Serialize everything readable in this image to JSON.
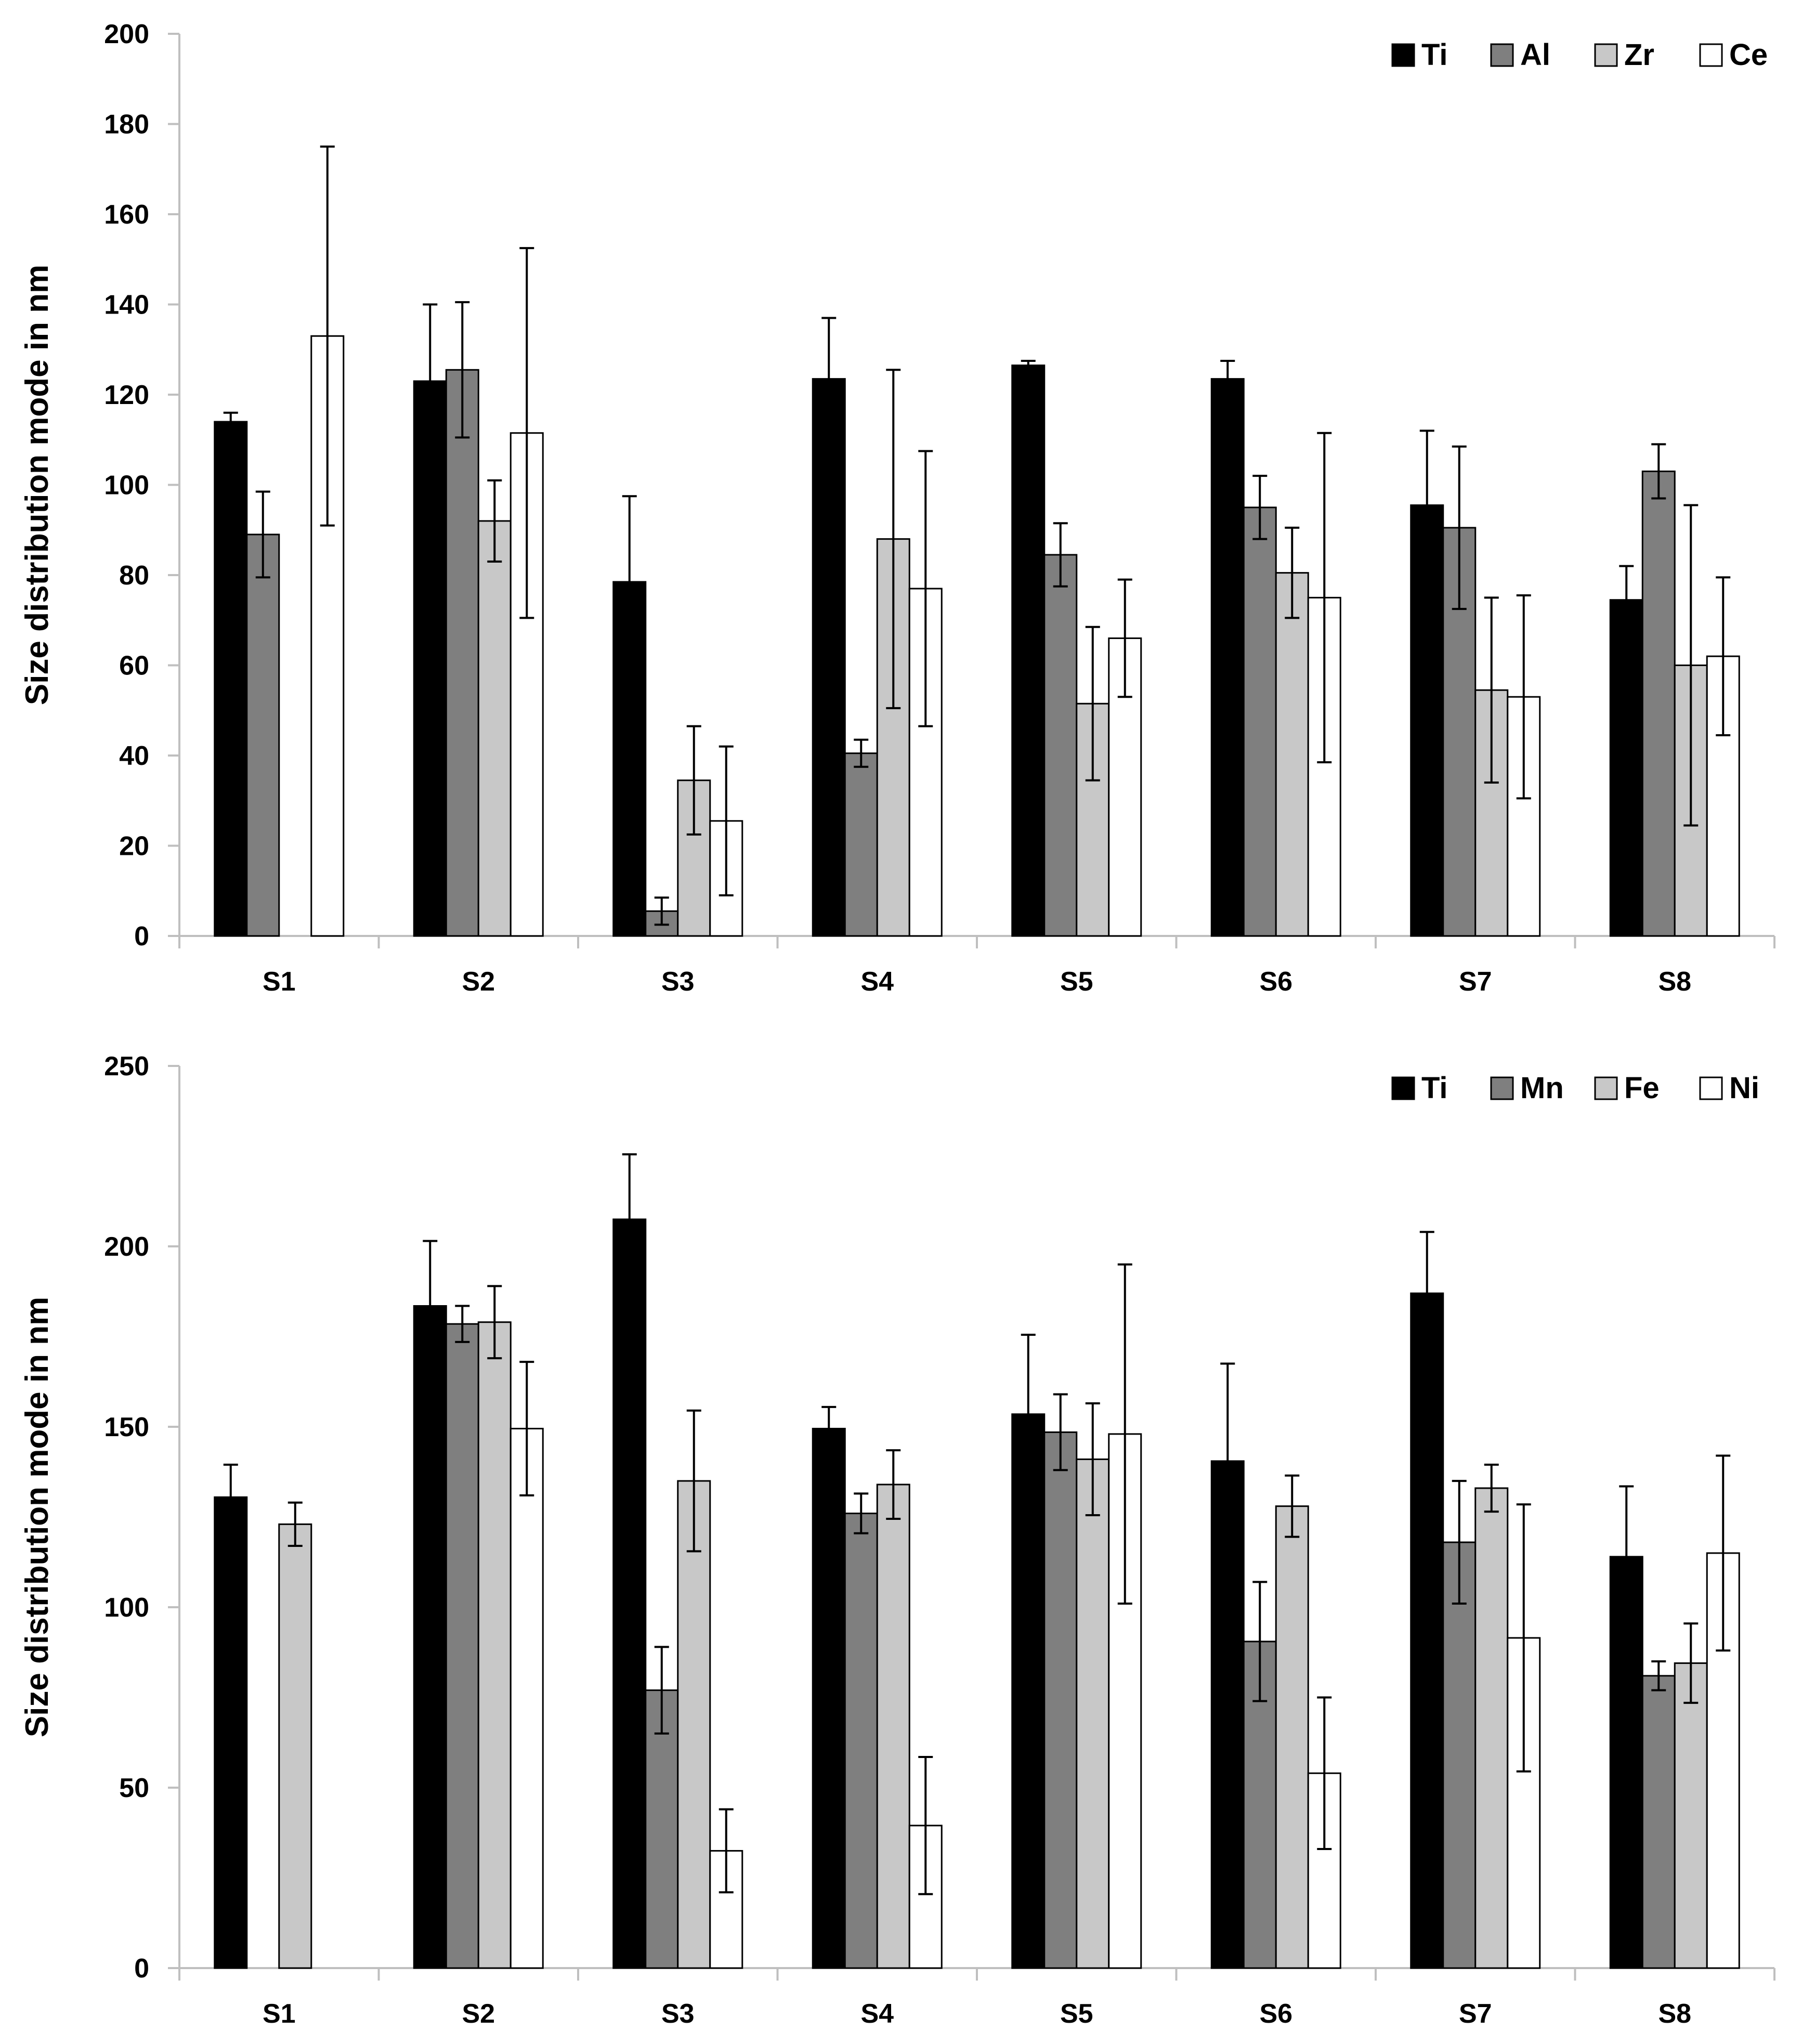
{
  "colors": {
    "series": [
      "#000000",
      "#7f7f7f",
      "#c8c8c8",
      "#ffffff"
    ],
    "outline": "#000000",
    "axis": "#bfbfbf"
  },
  "chart_data": [
    {
      "type": "bar",
      "title": "",
      "xlabel": "",
      "ylabel": "Size distribution mode in nm",
      "ylim": [
        0,
        200
      ],
      "ytick_step": 20,
      "legend_position": "top-right",
      "categories": [
        "S1",
        "S2",
        "S3",
        "S4",
        "S5",
        "S6",
        "S7",
        "S8"
      ],
      "series": [
        {
          "name": "Ti",
          "values": [
            114,
            123,
            78.5,
            123.5,
            126.5,
            123.5,
            95.5,
            74.5
          ],
          "errors": [
            2,
            17,
            19,
            13.5,
            1,
            4,
            16.5,
            7.5
          ]
        },
        {
          "name": "Al",
          "values": [
            89,
            125.5,
            null,
            40.5,
            84.5,
            95,
            90.5,
            103
          ],
          "errors": [
            9.5,
            15,
            null,
            3,
            7,
            7,
            18,
            6
          ]
        },
        {
          "name": "Zr",
          "values": [
            null,
            92,
            34.5,
            88,
            51.5,
            80.5,
            54.5,
            60
          ],
          "errors": [
            null,
            9,
            12,
            37.5,
            17,
            10,
            20.5,
            35.5
          ]
        },
        {
          "name": "Ce",
          "values": [
            133,
            111.5,
            25.5,
            77,
            66,
            75,
            53,
            62
          ],
          "errors": [
            42,
            41,
            16.5,
            30.5,
            13,
            36.5,
            22.5,
            17.5
          ]
        }
      ],
      "small_values": [
        {
          "category": "S3",
          "series": "Al",
          "value": 5.5,
          "error": 3
        }
      ]
    },
    {
      "type": "bar",
      "title": "",
      "xlabel": "",
      "ylabel": "Size distribution mode in nm",
      "ylim": [
        0,
        250
      ],
      "ytick_step": 50,
      "legend_position": "top-right",
      "categories": [
        "S1",
        "S2",
        "S3",
        "S4",
        "S5",
        "S6",
        "S7",
        "S8"
      ],
      "series": [
        {
          "name": "Ti",
          "values": [
            130.5,
            183.5,
            207.5,
            149.5,
            153.5,
            140.5,
            187,
            114
          ],
          "errors": [
            9,
            18,
            18,
            6,
            22,
            27,
            17,
            19.5
          ]
        },
        {
          "name": "Mn",
          "values": [
            null,
            178.5,
            77,
            126,
            148.5,
            90.5,
            118,
            81
          ],
          "errors": [
            null,
            5,
            12,
            5.5,
            10.5,
            16.5,
            17,
            4
          ]
        },
        {
          "name": "Fe",
          "values": [
            123,
            179,
            135,
            134,
            141,
            128,
            133,
            84.5
          ],
          "errors": [
            6,
            10,
            19.5,
            9.5,
            15.5,
            8.5,
            6.5,
            11
          ]
        },
        {
          "name": "Ni",
          "values": [
            null,
            149.5,
            32.5,
            39.5,
            148,
            54,
            91.5,
            115
          ],
          "errors": [
            null,
            18.5,
            11.5,
            19,
            47,
            21,
            37,
            27
          ]
        }
      ]
    }
  ]
}
